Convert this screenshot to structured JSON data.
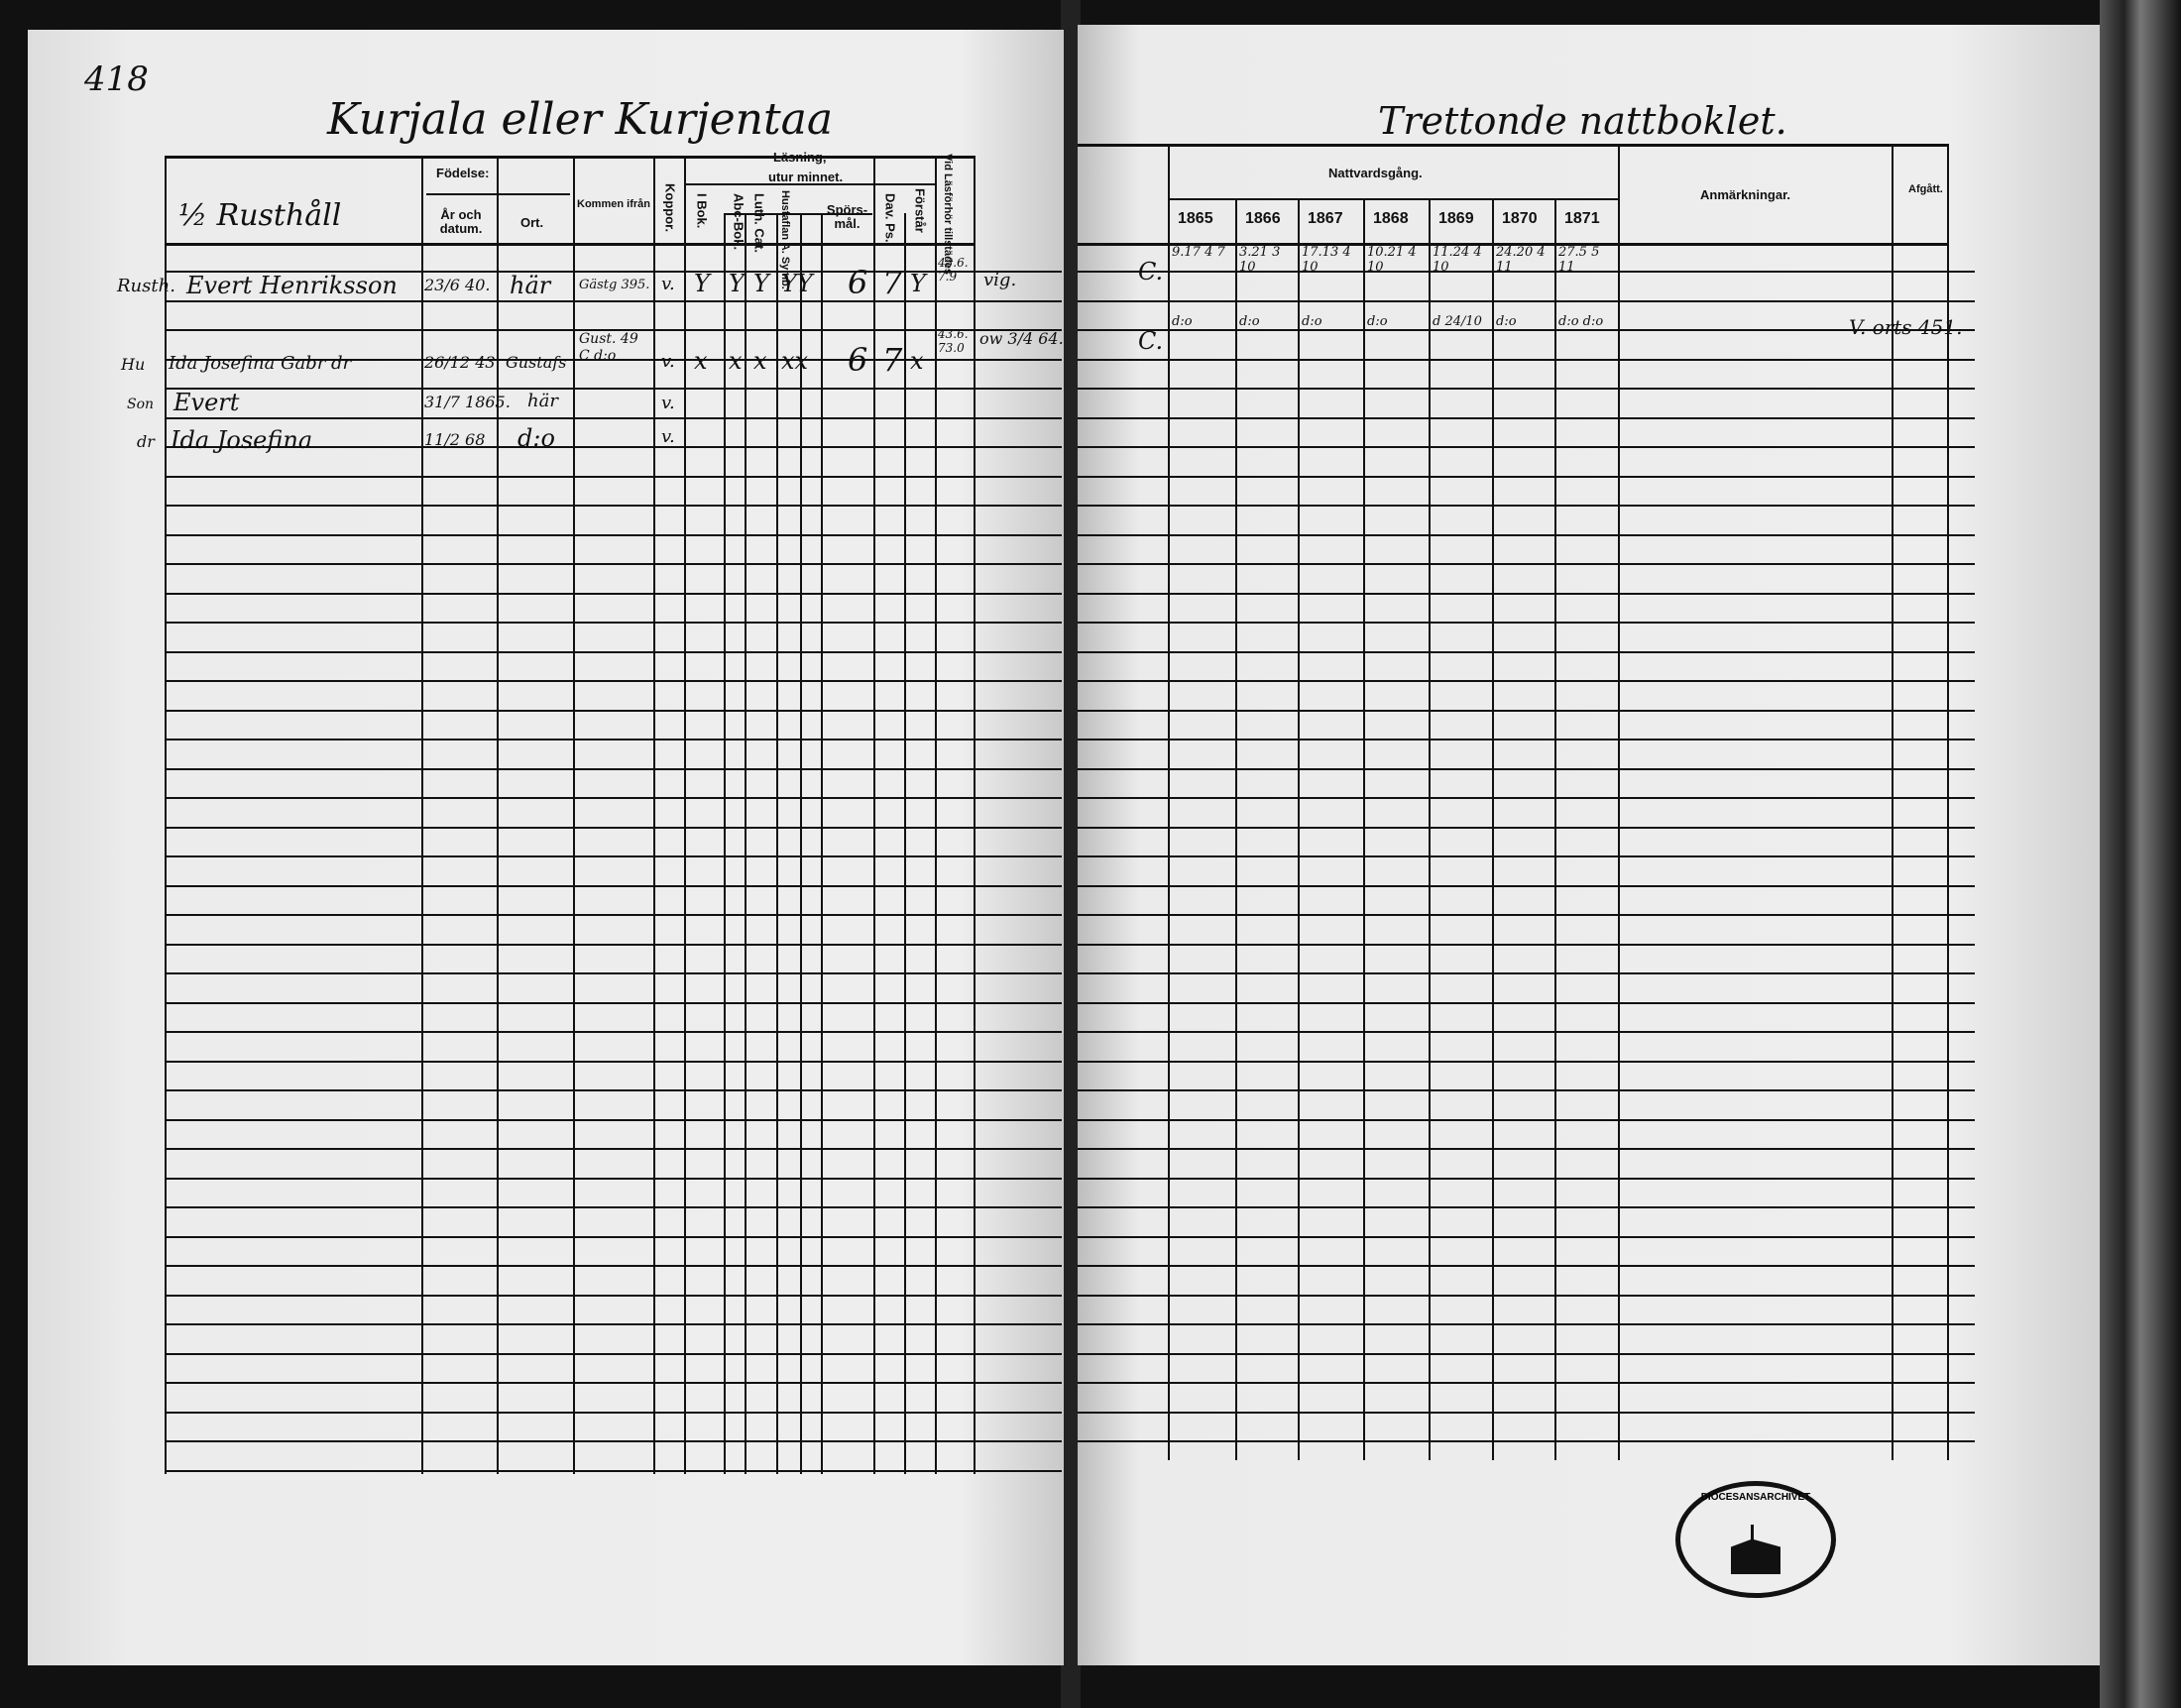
{
  "page_number": "418",
  "left": {
    "title": "Kurjala eller Kurjentaa",
    "headers": {
      "household": "½ Rusthåll",
      "fodelse": "Födelse:",
      "ar": "År och datum.",
      "ort": "Ort.",
      "kommen": "Kommen ifrån",
      "koppor": "Koppor.",
      "lasning": "Läsning,",
      "utur": "utur minnet.",
      "bok": "I Bok.",
      "abc": "Abc-Bok.",
      "luth": "Luth. Cat.",
      "husf": "Husfaflan A. Symb.",
      "spors": "Spörs-mål.",
      "dav": "Dav. Ps.",
      "forstar": "Förstår",
      "vid": "Vid Läsförhör tillstädes"
    },
    "rows": [
      {
        "role": "Rusth.",
        "name": "Evert Henriksson",
        "born": "23/6 40.",
        "place": "här",
        "from": "Gästg 395.",
        "koppor": "v.",
        "marks": [
          "Y",
          "Y",
          "Y",
          "YY"
        ],
        "spors": "6",
        "dav": "7",
        "forstar": "Y",
        "vid": "43.6. 7.9",
        "note": "vig."
      },
      {
        "role": "Hu",
        "name": "Ida Josefina Gabr dr",
        "born": "26/12 43",
        "place": "Gustafs",
        "from": "Gust. 49 C d:o",
        "koppor": "v.",
        "marks": [
          "x",
          "x",
          "x",
          "xx"
        ],
        "spors": "6",
        "dav": "7",
        "forstar": "x",
        "vid": "43.6. 73.0",
        "note": "ow 3/4 64."
      },
      {
        "role": "Son",
        "name": "Evert",
        "born": "31/7 1865.",
        "place": "här",
        "koppor": "v."
      },
      {
        "role": "dr",
        "name": "Ida Josefina",
        "born": "11/2 68",
        "place": "d:o",
        "koppor": "v."
      }
    ]
  },
  "right": {
    "title": "Trettonde nattboklet.",
    "headers": {
      "nattvard": "Nattvardsgång.",
      "years": [
        "1865",
        "1866",
        "1867",
        "1868",
        "1869",
        "1870",
        "1871"
      ],
      "anm": "Anmärkningar.",
      "afgatt": "Afgått."
    },
    "rows": [
      {
        "mark": "C.",
        "entries": [
          "9.17 4 7",
          "3.21 3 10",
          "17.13 4 10",
          "10.21 4 10",
          "11.24 4 10",
          "24.20 4 11",
          "27.5 5 11"
        ]
      },
      {
        "mark": "C.",
        "entries": [
          "d:o",
          "d:o",
          "d:o",
          "d:o",
          "d 24/10",
          "d:o",
          "d:o d:o"
        ],
        "afgatt": "V. orts 451."
      }
    ]
  },
  "stamp": "DIÖCESANSARCHIVET"
}
